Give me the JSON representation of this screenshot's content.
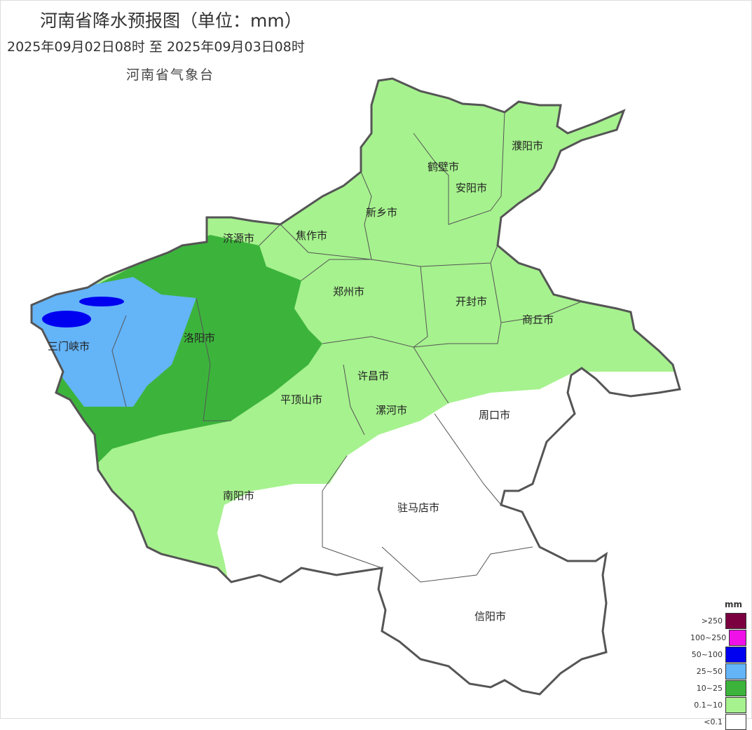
{
  "title": "河南省降水预报图（单位：mm）",
  "period": "2025年09月02日08时  至  2025年09月03日08时",
  "issuer": "河南省气象台",
  "legend": {
    "unit": "mm",
    "items": [
      {
        "label": ">250",
        "color": "#7a0040"
      },
      {
        "label": "100~250",
        "color": "#f010e8"
      },
      {
        "label": "50~100",
        "color": "#0000f0"
      },
      {
        "label": "25~50",
        "color": "#64b4f8"
      },
      {
        "label": "10~25",
        "color": "#3cb43c"
      },
      {
        "label": "0.1~10",
        "color": "#a6f28e"
      },
      {
        "label": "<0.1",
        "color": "#ffffff"
      }
    ]
  },
  "cities": [
    "濮阳市",
    "鹤壁市",
    "安阳市",
    "新乡市",
    "焦作市",
    "济源市",
    "郑州市",
    "开封市",
    "商丘市",
    "洛阳市",
    "三门峡市",
    "许昌市",
    "平顶山市",
    "漯河市",
    "周口市",
    "南阳市",
    "驻马店市",
    "信阳市"
  ]
}
